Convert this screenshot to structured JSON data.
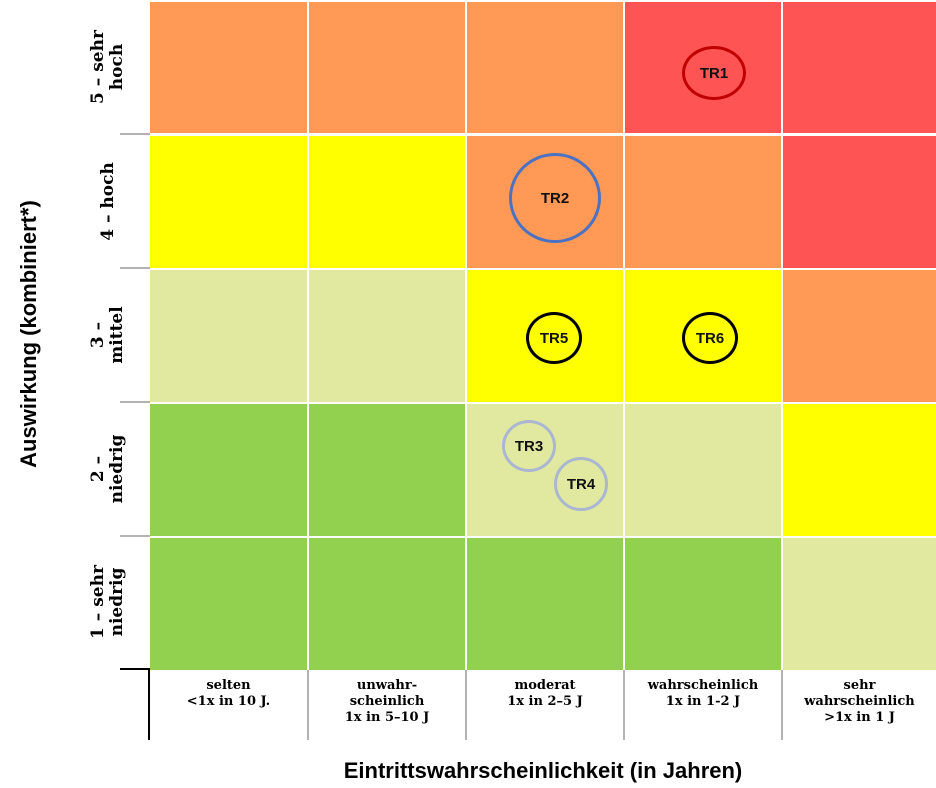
{
  "colors": {
    "very_high": "#ff5454",
    "high": "#ff9955",
    "medium": "#ffff00",
    "low": "#e1e9a1",
    "very_low": "#92d050",
    "circle_red": "#c00000",
    "circle_blue": "#4a72c4",
    "circle_black": "#000000",
    "circle_gray": "#aab6d2"
  },
  "y_axis": {
    "title": "Auswirkung (kombiniert*)",
    "rows": [
      "5 – sehr\nhoch",
      "4 – hoch",
      "3 – mittel",
      "2 – niedrig",
      "1 – sehr\nniedrig"
    ]
  },
  "x_axis": {
    "title": "Eintrittswahrscheinlichkeit (in Jahren)",
    "columns": [
      "selten\n<1x in 10 J.",
      "unwahr-\nscheinlich\n1x in 5–10 J",
      "moderat\n1x in 2–5 J",
      "wahrscheinlich\n1x in 1-2 J",
      "sehr\nwahrscheinlich\n>1x in 1 J"
    ]
  },
  "grid": [
    [
      "high",
      "high",
      "high",
      "very_high",
      "very_high"
    ],
    [
      "medium",
      "medium",
      "high",
      "high",
      "very_high"
    ],
    [
      "low",
      "low",
      "medium",
      "medium",
      "high"
    ],
    [
      "very_low",
      "very_low",
      "low",
      "low",
      "medium"
    ],
    [
      "very_low",
      "very_low",
      "very_low",
      "very_low",
      "low"
    ]
  ],
  "risks": [
    {
      "id": "TR1",
      "label": "TR1",
      "impact": "5 – sehr hoch",
      "likelihood": "wahrscheinlich",
      "color": "circle_red"
    },
    {
      "id": "TR2",
      "label": "TR2",
      "impact": "4 – hoch",
      "likelihood": "moderat",
      "color": "circle_blue"
    },
    {
      "id": "TR5",
      "label": "TR5",
      "impact": "3 – mittel",
      "likelihood": "moderat",
      "color": "circle_black"
    },
    {
      "id": "TR6",
      "label": "TR6",
      "impact": "3 – mittel",
      "likelihood": "wahrscheinlich",
      "color": "circle_black"
    },
    {
      "id": "TR3",
      "label": "TR3",
      "impact": "2 – niedrig",
      "likelihood": "moderat",
      "color": "circle_gray"
    },
    {
      "id": "TR4",
      "label": "TR4",
      "impact": "2 – niedrig",
      "likelihood": "moderat",
      "color": "circle_gray"
    }
  ]
}
